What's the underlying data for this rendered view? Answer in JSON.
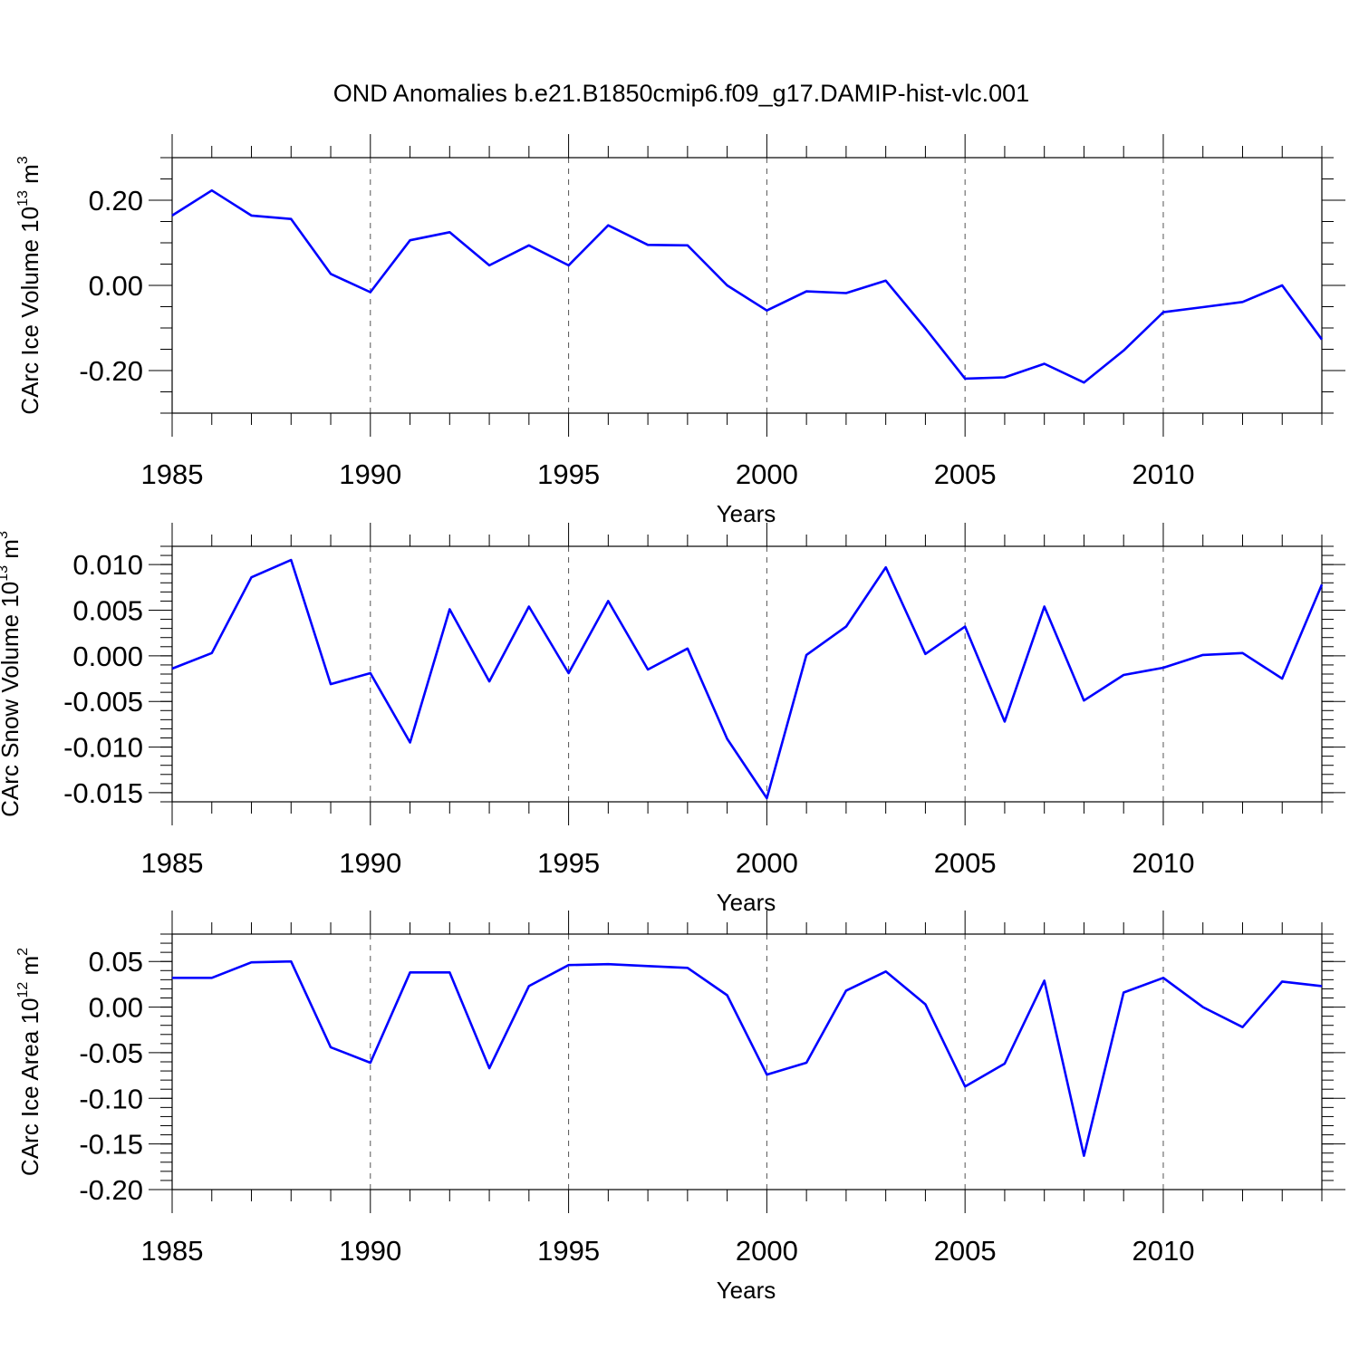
{
  "colors": {
    "line": "#0000ff",
    "axis": "#000000",
    "grid": "#555555"
  },
  "chart_data": [
    {
      "type": "line",
      "title": "OND Anomalies b.e21.B1850cmip6.f09_g17.DAMIP-hist-vlc.001",
      "xlabel": "Years",
      "ylabel": "CArc Ice Volume 10",
      "ylabel_sup": "13",
      "ylabel_unit": " m",
      "ylabel_unit_sup": "3",
      "xlim": [
        1985,
        2014
      ],
      "ylim": [
        -0.3,
        0.3
      ],
      "x_ticks": [
        1985,
        1990,
        1995,
        2000,
        2005,
        2010
      ],
      "y_ticks": [
        -0.2,
        0.0,
        0.2
      ],
      "y_tick_labels": [
        "-0.20",
        "0.00",
        "0.20"
      ],
      "y_minor_step": 0.05,
      "grid": "x-dashed",
      "x": [
        1985,
        1986,
        1987,
        1988,
        1989,
        1990,
        1991,
        1992,
        1993,
        1994,
        1995,
        1996,
        1997,
        1998,
        1999,
        2000,
        2001,
        2002,
        2003,
        2004,
        2005,
        2006,
        2007,
        2008,
        2009,
        2010,
        2011,
        2012,
        2013,
        2014
      ],
      "values": [
        0.164,
        0.223,
        0.164,
        0.156,
        0.027,
        -0.016,
        0.106,
        0.125,
        0.047,
        0.094,
        0.047,
        0.141,
        0.095,
        0.094,
        0.0,
        -0.059,
        -0.014,
        -0.018,
        0.011,
        -0.101,
        -0.219,
        -0.216,
        -0.184,
        -0.228,
        -0.153,
        -0.063,
        -0.051,
        -0.039,
        0.0,
        -0.127
      ]
    },
    {
      "type": "line",
      "title": "",
      "xlabel": "Years",
      "ylabel": "CArc Snow Volume 10",
      "ylabel_sup": "13",
      "ylabel_unit": " m",
      "ylabel_unit_sup": "3",
      "xlim": [
        1985,
        2014
      ],
      "ylim": [
        -0.016,
        0.012
      ],
      "x_ticks": [
        1985,
        1990,
        1995,
        2000,
        2005,
        2010
      ],
      "y_ticks": [
        -0.015,
        -0.01,
        -0.005,
        0.0,
        0.005,
        0.01
      ],
      "y_tick_labels": [
        "-0.015",
        "-0.010",
        "-0.005",
        "0.000",
        "0.005",
        "0.010"
      ],
      "y_minor_step": 0.001,
      "grid": "x-dashed",
      "x": [
        1985,
        1986,
        1987,
        1988,
        1989,
        1990,
        1991,
        1992,
        1993,
        1994,
        1995,
        1996,
        1997,
        1998,
        1999,
        2000,
        2001,
        2002,
        2003,
        2004,
        2005,
        2006,
        2007,
        2008,
        2009,
        2010,
        2011,
        2012,
        2013,
        2014
      ],
      "values": [
        -0.0014,
        0.0003,
        0.0086,
        0.0105,
        -0.0031,
        -0.0019,
        -0.0095,
        0.0051,
        -0.0028,
        0.0054,
        -0.0019,
        0.006,
        -0.0015,
        0.0008,
        -0.0091,
        -0.0156,
        0.0001,
        0.0032,
        0.0097,
        0.0002,
        0.0032,
        -0.0072,
        0.0054,
        -0.0049,
        -0.0021,
        -0.0013,
        0.0001,
        0.0003,
        -0.0025,
        0.0078
      ]
    },
    {
      "type": "line",
      "title": "",
      "xlabel": "Years",
      "ylabel": "CArc Ice Area 10",
      "ylabel_sup": "12",
      "ylabel_unit": " m",
      "ylabel_unit_sup": "2",
      "xlim": [
        1985,
        2014
      ],
      "ylim": [
        -0.2,
        0.08
      ],
      "x_ticks": [
        1985,
        1990,
        1995,
        2000,
        2005,
        2010
      ],
      "y_ticks": [
        -0.2,
        -0.15,
        -0.1,
        -0.05,
        0.0,
        0.05
      ],
      "y_tick_labels": [
        "-0.20",
        "-0.15",
        "-0.10",
        "-0.05",
        "0.00",
        "0.05"
      ],
      "y_minor_step": 0.01,
      "grid": "x-dashed",
      "x": [
        1985,
        1986,
        1987,
        1988,
        1989,
        1990,
        1991,
        1992,
        1993,
        1994,
        1995,
        1996,
        1997,
        1998,
        1999,
        2000,
        2001,
        2002,
        2003,
        2004,
        2005,
        2006,
        2007,
        2008,
        2009,
        2010,
        2011,
        2012,
        2013,
        2014
      ],
      "values": [
        0.032,
        0.032,
        0.049,
        0.05,
        -0.044,
        -0.061,
        0.038,
        0.038,
        -0.067,
        0.023,
        0.046,
        0.047,
        0.045,
        0.043,
        0.013,
        -0.074,
        -0.061,
        0.018,
        0.039,
        0.003,
        -0.087,
        -0.062,
        0.029,
        -0.163,
        0.016,
        0.032,
        0.0,
        -0.022,
        0.028,
        0.023
      ]
    }
  ]
}
